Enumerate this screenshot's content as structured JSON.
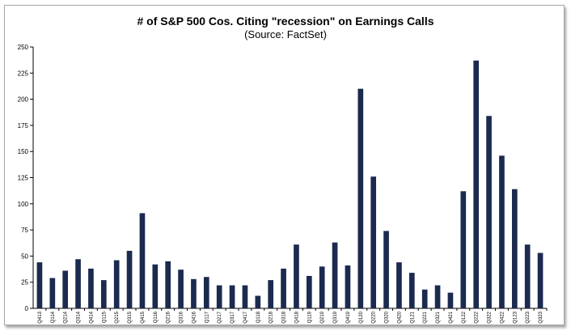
{
  "chart_data": {
    "type": "bar",
    "title": "# of S&P 500 Cos. Citing \"recession\" on Earnings Calls",
    "subtitle": "(Source: FactSet)",
    "xlabel": "",
    "ylabel": "",
    "ylim": [
      0,
      250
    ],
    "yticks": [
      0,
      25,
      50,
      75,
      100,
      125,
      150,
      175,
      200,
      225,
      250
    ],
    "grid": false,
    "bar_color": "#1b2a4e",
    "categories": [
      "Q413",
      "Q114",
      "Q214",
      "Q314",
      "Q414",
      "Q115",
      "Q215",
      "Q315",
      "Q415",
      "Q116",
      "Q216",
      "Q316",
      "Q416",
      "Q117",
      "Q217",
      "Q317",
      "Q417",
      "Q118",
      "Q218",
      "Q318",
      "Q418",
      "Q119",
      "Q219",
      "Q319",
      "Q419",
      "Q120",
      "Q220",
      "Q320",
      "Q420",
      "Q121",
      "Q221",
      "Q321",
      "Q421",
      "Q122",
      "Q222",
      "Q322",
      "Q422",
      "Q123",
      "Q223",
      "Q323"
    ],
    "values": [
      44,
      29,
      36,
      47,
      38,
      27,
      46,
      55,
      91,
      42,
      45,
      37,
      28,
      30,
      22,
      22,
      22,
      12,
      27,
      38,
      61,
      31,
      40,
      63,
      41,
      210,
      126,
      74,
      44,
      34,
      18,
      22,
      15,
      112,
      237,
      184,
      146,
      114,
      61,
      53
    ]
  }
}
